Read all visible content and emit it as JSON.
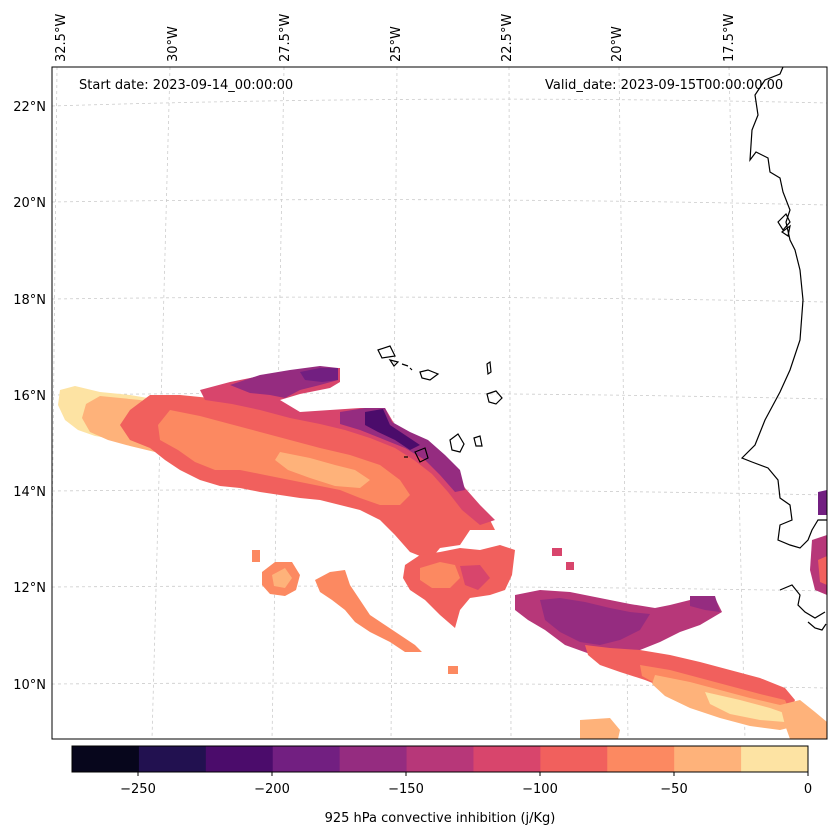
{
  "annotations": {
    "start_date": "Start date: 2023-09-14_00:00:00",
    "valid_date": "Valid_date: 2023-09-15T00:00:00.00"
  },
  "axes": {
    "lon_labels": [
      "32.5°W",
      "30°W",
      "27.5°W",
      "25°W",
      "22.5°W",
      "20°W",
      "17.5°W"
    ],
    "lat_labels": [
      "22°N",
      "20°N",
      "18°N",
      "16°N",
      "14°N",
      "12°N",
      "10°N"
    ]
  },
  "colorbar": {
    "label": "925 hPa convective inhibition (j/Kg)",
    "ticks": [
      "−250",
      "−200",
      "−150",
      "−100",
      "−50",
      "0"
    ],
    "colors": [
      "#07061c",
      "#221150",
      "#4b0c6b",
      "#721f81",
      "#952c80",
      "#b73779",
      "#d8456c",
      "#f1605d",
      "#fc8961",
      "#feb27a",
      "#fde3a3"
    ]
  },
  "map": {
    "gridlines": true,
    "coastline_color": "#000000"
  }
}
